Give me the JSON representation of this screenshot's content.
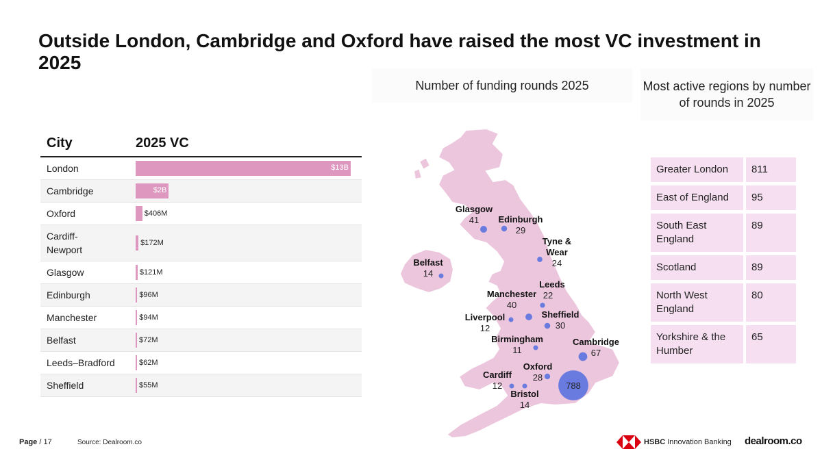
{
  "title": "Outside London, Cambridge and Oxford have raised the most VC investment in 2025",
  "table": {
    "header_city": "City",
    "header_vc": "2025 VC",
    "rows": [
      {
        "city": "London",
        "label": "$13B",
        "value_b": 13
      },
      {
        "city": "Cambridge",
        "label": "$2B",
        "value_b": 2
      },
      {
        "city": "Oxford",
        "label": "$406M",
        "value_b": 0.406
      },
      {
        "city": "Cardiff-\nNewport",
        "label": "$172M",
        "value_b": 0.172
      },
      {
        "city": "Glasgow",
        "label": "$121M",
        "value_b": 0.121
      },
      {
        "city": "Edinburgh",
        "label": "$96M",
        "value_b": 0.096
      },
      {
        "city": "Manchester",
        "label": "$94M",
        "value_b": 0.094
      },
      {
        "city": "Belfast",
        "label": "$72M",
        "value_b": 0.072
      },
      {
        "city": "Leeds–Bradford",
        "label": "$62M",
        "value_b": 0.062
      },
      {
        "city": "Sheffield",
        "label": "$55M",
        "value_b": 0.055
      }
    ],
    "bar_color": "#de98c0"
  },
  "map": {
    "title": "Number of funding rounds 2025",
    "land_color": "#ecc6dc",
    "bubble_color": "#6a7be0",
    "cities": [
      {
        "name": "Glasgow",
        "rounds": "41"
      },
      {
        "name": "Edinburgh",
        "rounds": "29"
      },
      {
        "name": "Tyne &\nWear",
        "rounds": "24"
      },
      {
        "name": "Belfast",
        "rounds": "14"
      },
      {
        "name": "Leeds",
        "rounds": "22"
      },
      {
        "name": "Manchester",
        "rounds": "40"
      },
      {
        "name": "Liverpool",
        "rounds": "12"
      },
      {
        "name": "Sheffield",
        "rounds": "30"
      },
      {
        "name": "Birmingham",
        "rounds": "11"
      },
      {
        "name": "Cambridge",
        "rounds": "67"
      },
      {
        "name": "Oxford",
        "rounds": "28"
      },
      {
        "name": "Cardiff",
        "rounds": "12"
      },
      {
        "name": "Bristol",
        "rounds": "14"
      },
      {
        "name": "London",
        "rounds": "788"
      }
    ]
  },
  "regions": {
    "title": "Most active regions by number of rounds in 2025",
    "items": [
      {
        "name": "Greater London",
        "value": "811"
      },
      {
        "name": "East of England",
        "value": "95"
      },
      {
        "name": "South East England",
        "value": "89"
      },
      {
        "name": "Scotland",
        "value": "89"
      },
      {
        "name": "North West England",
        "value": "80"
      },
      {
        "name": "Yorkshire & the Humber",
        "value": "65"
      }
    ]
  },
  "footer": {
    "page_label": "Page",
    "page_number": "/ 17",
    "source": "Source:  Dealroom.co",
    "hsbc_brand": "HSBC",
    "hsbc_unit": "Innovation Banking",
    "dealroom": "dealroom.co"
  }
}
